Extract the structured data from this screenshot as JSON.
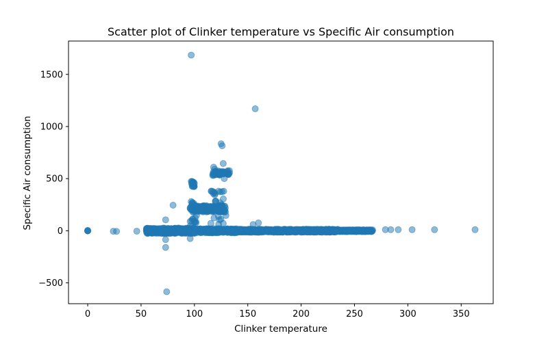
{
  "chart_data": {
    "type": "scatter",
    "title": "Scatter plot of Clinker temperature vs Specific Air consumption",
    "xlabel": "Clinker temperature",
    "ylabel": "Specific Air consumption",
    "xlim": [
      -18,
      380
    ],
    "ylim": [
      -700,
      1820
    ],
    "xticks": [
      0,
      50,
      100,
      150,
      200,
      250,
      300,
      350
    ],
    "yticks": [
      -500,
      0,
      500,
      1000,
      1500
    ],
    "xtick_labels": [
      "0",
      "50",
      "100",
      "150",
      "200",
      "250",
      "300",
      "350"
    ],
    "ytick_labels": [
      "−500",
      "0",
      "500",
      "1000",
      "1500"
    ],
    "marker_color": "#1f77b4",
    "marker_alpha": 0.5,
    "grid": false,
    "legend": "none",
    "series": [
      {
        "values": [
          [
            0,
            0
          ],
          [
            0,
            2
          ],
          [
            0,
            -2
          ],
          [
            0,
            1
          ],
          [
            0,
            -1
          ],
          [
            24,
            -5
          ],
          [
            27,
            -6
          ],
          [
            46,
            -4
          ],
          [
            97,
            1685
          ],
          [
            157,
            1170
          ],
          [
            125,
            835
          ],
          [
            126,
            815
          ],
          [
            127,
            645
          ],
          [
            126,
            375
          ],
          [
            128,
            500
          ],
          [
            116,
            380
          ],
          [
            118,
            610
          ],
          [
            119,
            590
          ],
          [
            80,
            245
          ],
          [
            73,
            105
          ],
          [
            73,
            -85
          ],
          [
            73,
            -160
          ],
          [
            74,
            -585
          ],
          [
            96,
            -75
          ],
          [
            96,
            90
          ],
          [
            97,
            280
          ],
          [
            160,
            75
          ],
          [
            155,
            60
          ],
          [
            279,
            10
          ],
          [
            284,
            10
          ],
          [
            291,
            10
          ],
          [
            304,
            10
          ],
          [
            325,
            10
          ],
          [
            363,
            10
          ]
        ]
      }
    ]
  }
}
